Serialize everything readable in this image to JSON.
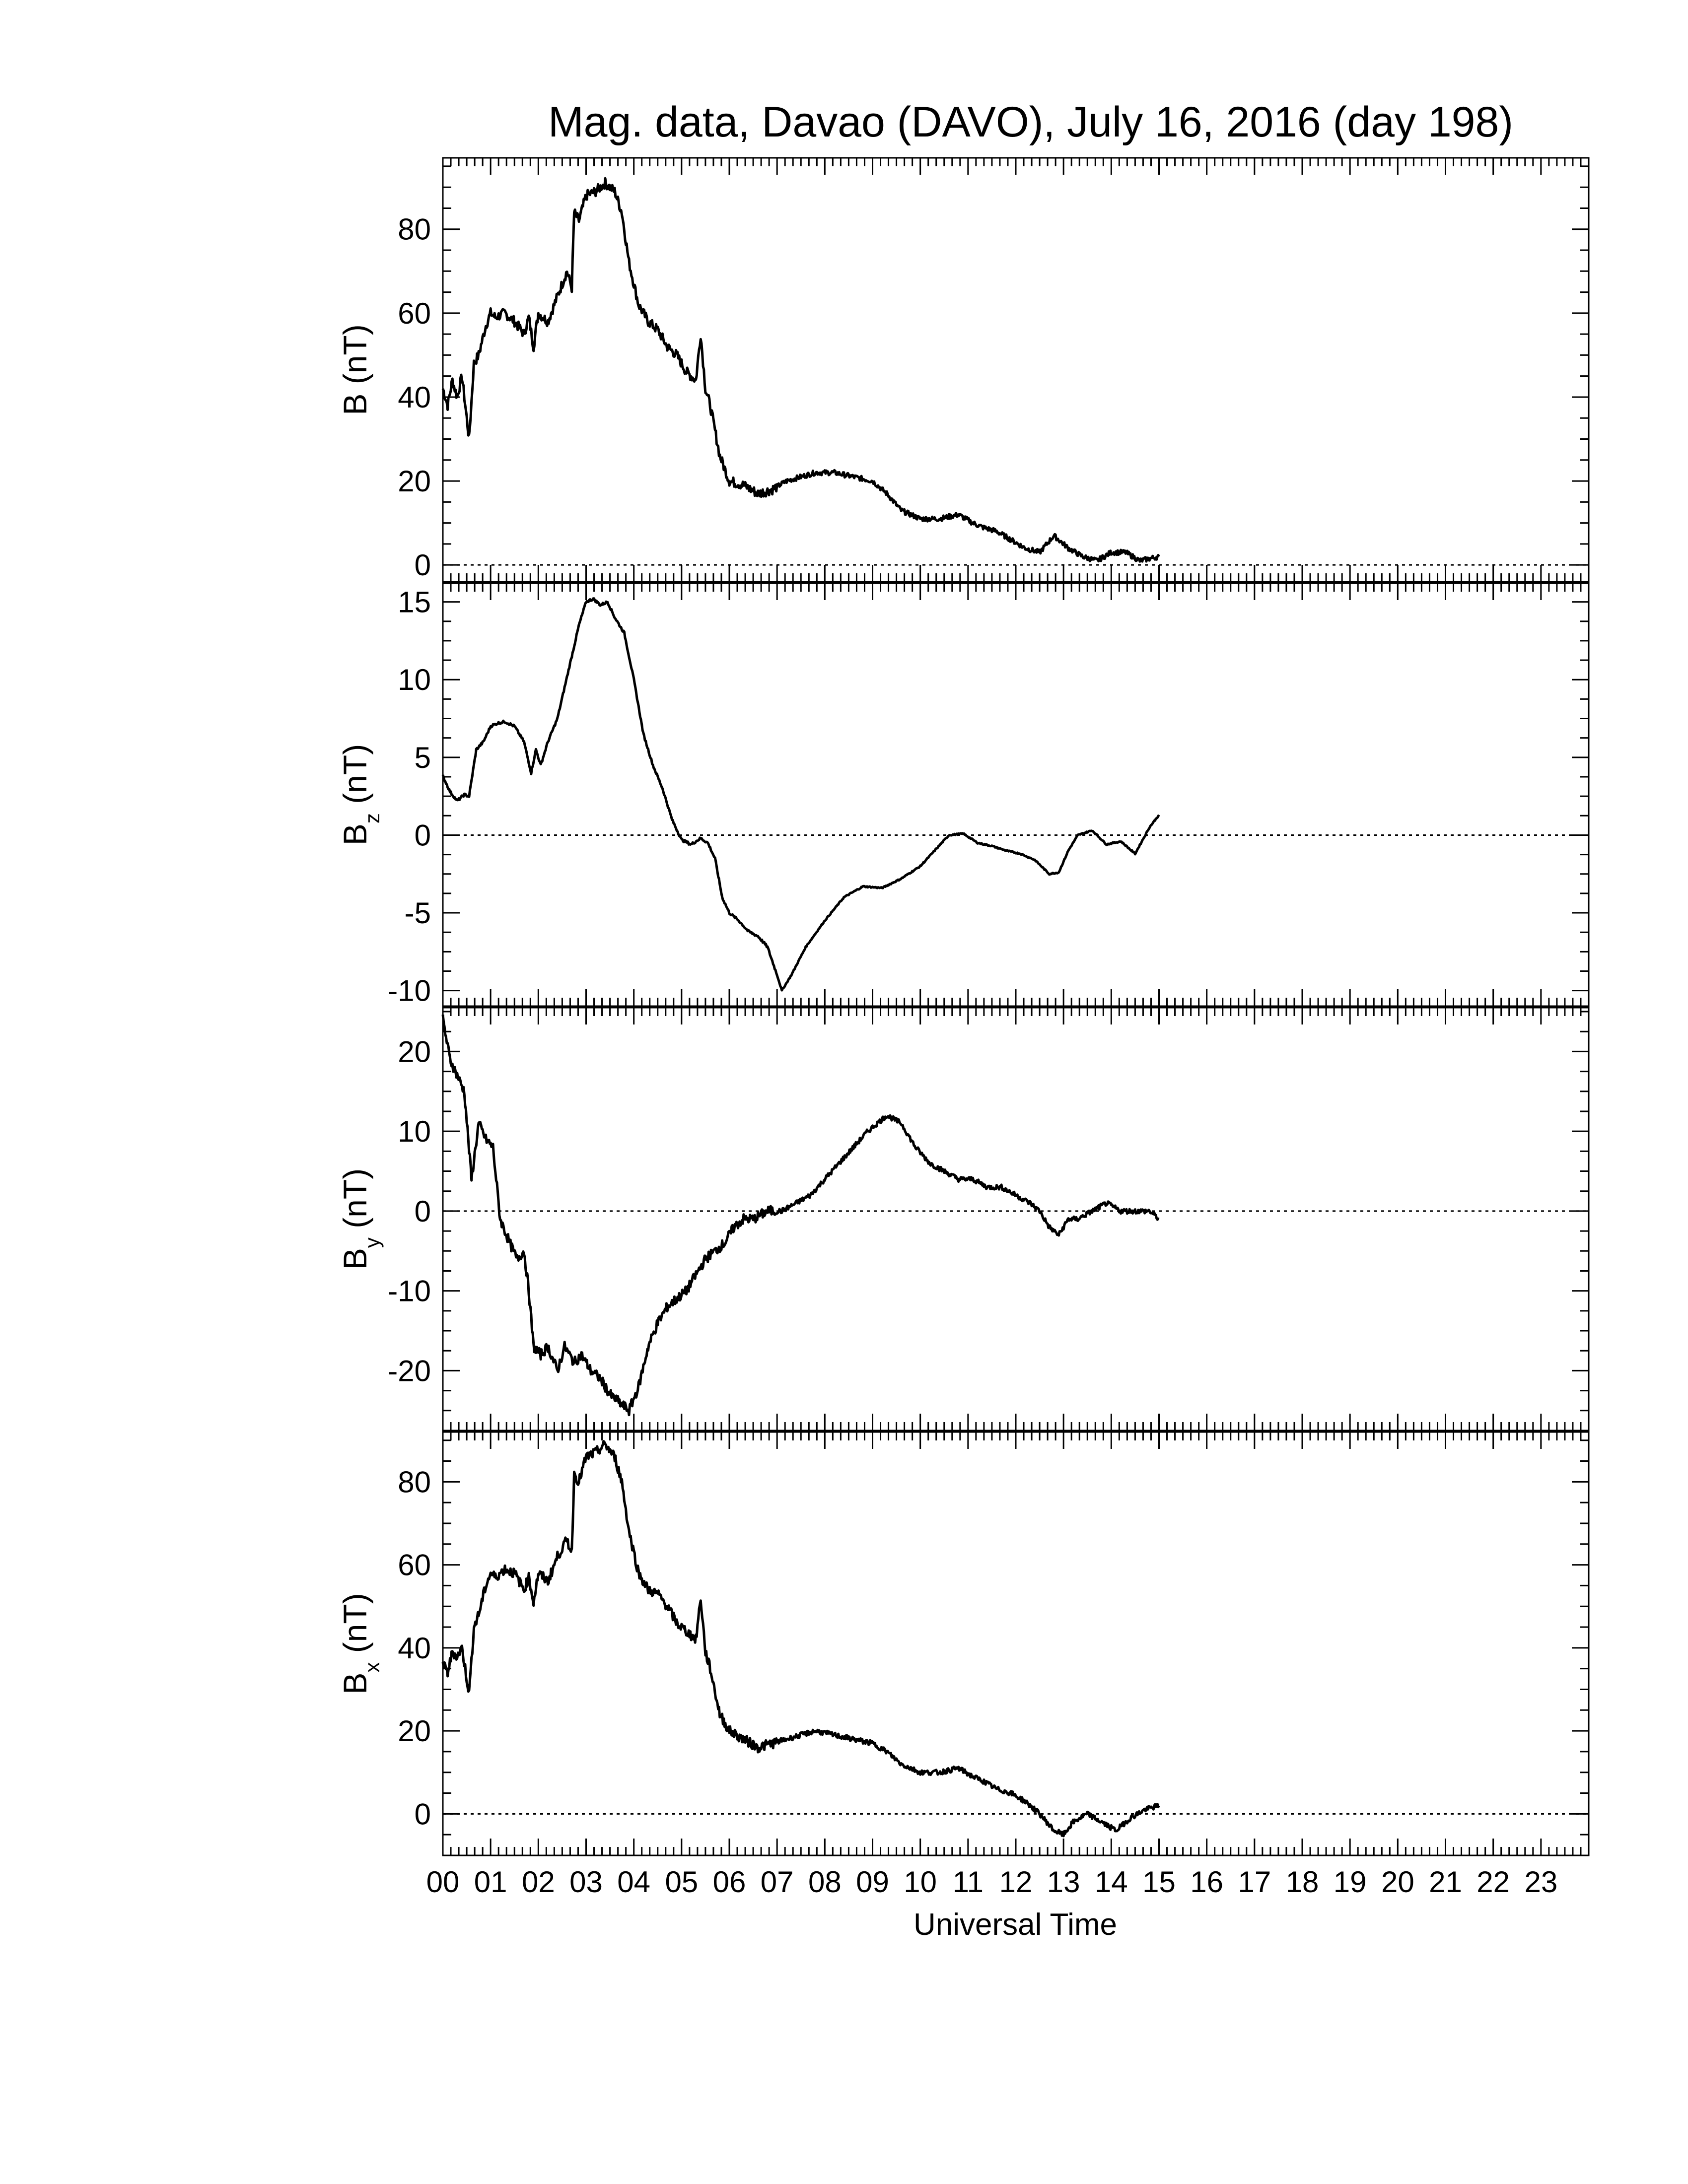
{
  "title": "Mag. data, Davao (DAVO), July 16, 2016 (day 198)",
  "chart_data": {
    "type": "line",
    "x_unit": "hours UT",
    "xlabel": "Universal Time",
    "x_range": [
      0,
      24
    ],
    "x_tick_labels": [
      "00",
      "01",
      "02",
      "03",
      "04",
      "05",
      "06",
      "07",
      "08",
      "09",
      "10",
      "11",
      "12",
      "13",
      "14",
      "15",
      "16",
      "17",
      "18",
      "19",
      "20",
      "21",
      "22",
      "23"
    ],
    "panels": [
      {
        "id": "b",
        "ylabel": "B (nT)",
        "ylabel_main": "B",
        "ylabel_sub": "",
        "ylabel_unit": " (nT)",
        "ylim": [
          -4,
          97
        ],
        "yticks": [
          0,
          20,
          40,
          60,
          80
        ],
        "zero_line": true,
        "x": [
          0.0,
          0.1,
          0.2,
          0.3,
          0.4,
          0.55,
          0.65,
          0.75,
          0.9,
          1.0,
          1.1,
          1.3,
          1.5,
          1.7,
          1.8,
          1.9,
          2.0,
          2.2,
          2.4,
          2.6,
          2.7,
          2.75,
          2.85,
          3.0,
          3.2,
          3.4,
          3.6,
          3.75,
          3.9,
          4.1,
          4.3,
          4.5,
          4.7,
          4.9,
          5.1,
          5.3,
          5.4,
          5.5,
          5.6,
          5.8,
          6.0,
          6.3,
          6.6,
          6.9,
          7.2,
          7.5,
          7.8,
          8.2,
          8.6,
          9.0,
          9.3,
          9.6,
          10.0,
          10.4,
          10.8,
          11.1,
          11.3,
          11.6,
          11.9,
          12.2,
          12.5,
          12.8,
          13.1,
          13.4,
          13.7,
          14.0,
          14.3,
          14.6,
          15.0
        ],
        "y": [
          42,
          38,
          44,
          40,
          45,
          30,
          48,
          50,
          57,
          60,
          59,
          60,
          58,
          55,
          59,
          52,
          60,
          58,
          64,
          70,
          66,
          84,
          82,
          88,
          89,
          91,
          89,
          84,
          72,
          62,
          58,
          56,
          52,
          50,
          46,
          44,
          55,
          42,
          38,
          26,
          20,
          19,
          17,
          18,
          20,
          21,
          22,
          22,
          21,
          20,
          17,
          13,
          11,
          11,
          12,
          10,
          9,
          8,
          6,
          4,
          3,
          7,
          4,
          2,
          1,
          3,
          3,
          1,
          2
        ],
        "spikes": true
      },
      {
        "id": "bz",
        "ylabel": "Bz (nT)",
        "ylabel_main": "B",
        "ylabel_sub": "z",
        "ylabel_unit": " (nT)",
        "ylim": [
          -11,
          16.2
        ],
        "yticks": [
          -10,
          -5,
          0,
          5,
          10,
          15
        ],
        "zero_line": true,
        "x": [
          0.0,
          0.15,
          0.3,
          0.45,
          0.55,
          0.7,
          0.85,
          1.0,
          1.15,
          1.3,
          1.5,
          1.7,
          1.85,
          1.95,
          2.05,
          2.2,
          2.4,
          2.55,
          2.7,
          2.85,
          3.0,
          3.15,
          3.3,
          3.45,
          3.6,
          3.8,
          4.0,
          4.2,
          4.4,
          4.6,
          4.8,
          5.0,
          5.2,
          5.4,
          5.55,
          5.7,
          5.85,
          6.0,
          6.2,
          6.4,
          6.6,
          6.8,
          7.0,
          7.1,
          7.3,
          7.6,
          8.0,
          8.4,
          8.8,
          9.2,
          9.6,
          10.0,
          10.3,
          10.6,
          10.9,
          11.2,
          11.5,
          11.8,
          12.1,
          12.4,
          12.7,
          12.9,
          13.1,
          13.3,
          13.6,
          13.9,
          14.2,
          14.5,
          14.8,
          15.0
        ],
        "y": [
          3.8,
          2.8,
          2.2,
          2.6,
          2.5,
          5.5,
          6.0,
          7.0,
          7.2,
          7.3,
          7.0,
          6.0,
          4.0,
          5.5,
          4.5,
          6.0,
          7.5,
          9.5,
          11.5,
          13.5,
          15.0,
          15.2,
          14.8,
          15.0,
          14.0,
          13.0,
          10.0,
          6.5,
          4.5,
          3.0,
          1.0,
          -0.3,
          -0.6,
          -0.2,
          -0.5,
          -1.5,
          -4.0,
          -5.0,
          -5.5,
          -6.2,
          -6.5,
          -7.2,
          -9.0,
          -10.0,
          -9.0,
          -7.2,
          -5.5,
          -4.0,
          -3.3,
          -3.4,
          -2.8,
          -2.0,
          -1.0,
          0.0,
          0.1,
          -0.5,
          -0.7,
          -1.0,
          -1.2,
          -1.6,
          -2.5,
          -2.4,
          -1.0,
          0.0,
          0.3,
          -0.6,
          -0.4,
          -1.2,
          0.5,
          1.3
        ],
        "spikes": false
      },
      {
        "id": "by",
        "ylabel": "By (nT)",
        "ylabel_main": "B",
        "ylabel_sub": "y",
        "ylabel_unit": " (nT)",
        "ylim": [
          -27.5,
          25.5
        ],
        "yticks": [
          -20,
          -10,
          0,
          10,
          20
        ],
        "zero_line": true,
        "x": [
          0.0,
          0.15,
          0.3,
          0.45,
          0.6,
          0.75,
          0.9,
          1.05,
          1.2,
          1.4,
          1.55,
          1.7,
          1.8,
          1.9,
          2.05,
          2.2,
          2.4,
          2.55,
          2.75,
          2.9,
          3.1,
          3.3,
          3.5,
          3.7,
          3.9,
          4.1,
          4.3,
          4.5,
          4.7,
          4.9,
          5.1,
          5.3,
          5.5,
          5.7,
          5.9,
          6.1,
          6.3,
          6.5,
          6.8,
          7.1,
          7.4,
          7.7,
          8.0,
          8.3,
          8.6,
          8.9,
          9.1,
          9.3,
          9.6,
          9.9,
          10.2,
          10.5,
          10.8,
          11.1,
          11.4,
          11.7,
          12.0,
          12.3,
          12.5,
          12.7,
          12.9,
          13.1,
          13.3,
          13.6,
          13.9,
          14.2,
          14.5,
          14.8,
          15.0
        ],
        "y": [
          24,
          19,
          17,
          15,
          4,
          11,
          9,
          8,
          -1,
          -4,
          -6,
          -5,
          -10,
          -17,
          -18,
          -17,
          -20,
          -17,
          -19,
          -18,
          -20,
          -21,
          -23,
          -24,
          -25,
          -22,
          -17,
          -14,
          -12,
          -11,
          -10,
          -8,
          -6,
          -5,
          -4,
          -2,
          -1,
          -1,
          0,
          0,
          1,
          2,
          4,
          6,
          8,
          10,
          11,
          12,
          11,
          8,
          6,
          5,
          4,
          4,
          3,
          3,
          2,
          1,
          0,
          -2,
          -3,
          -1,
          -1,
          0,
          1,
          0,
          0,
          0,
          -1
        ],
        "spikes": true
      },
      {
        "id": "bx",
        "ylabel": "Bx (nT)",
        "ylabel_main": "B",
        "ylabel_sub": "x",
        "ylabel_unit": " (nT)",
        "ylim": [
          -10,
          92
        ],
        "yticks": [
          0,
          20,
          40,
          60,
          80
        ],
        "zero_line": true,
        "x": [
          0.0,
          0.1,
          0.2,
          0.3,
          0.4,
          0.55,
          0.65,
          0.75,
          0.9,
          1.0,
          1.1,
          1.3,
          1.5,
          1.7,
          1.8,
          1.9,
          2.0,
          2.2,
          2.4,
          2.6,
          2.7,
          2.75,
          2.85,
          3.0,
          3.2,
          3.4,
          3.6,
          3.75,
          3.9,
          4.1,
          4.3,
          4.5,
          4.7,
          4.9,
          5.1,
          5.3,
          5.4,
          5.5,
          5.6,
          5.8,
          6.0,
          6.3,
          6.6,
          6.9,
          7.2,
          7.5,
          7.8,
          8.2,
          8.6,
          9.0,
          9.3,
          9.6,
          10.0,
          10.4,
          10.8,
          11.1,
          11.3,
          11.6,
          11.9,
          12.2,
          12.5,
          12.8,
          13.0,
          13.2,
          13.5,
          13.8,
          14.1,
          14.4,
          14.7,
          15.0
        ],
        "y": [
          36,
          34,
          39,
          38,
          40,
          29,
          45,
          48,
          55,
          58,
          57,
          59,
          58,
          54,
          57,
          51,
          58,
          56,
          62,
          66,
          63,
          82,
          80,
          86,
          87,
          89,
          86,
          80,
          68,
          58,
          54,
          53,
          50,
          46,
          44,
          42,
          52,
          39,
          35,
          24,
          20,
          18,
          16,
          17,
          18,
          19,
          20,
          19,
          18,
          17,
          15,
          12,
          10,
          10,
          11,
          9,
          8,
          6,
          5,
          3,
          0,
          -4,
          -5,
          -2,
          0,
          -2,
          -4,
          -1,
          1,
          2
        ],
        "spikes": true
      }
    ]
  }
}
